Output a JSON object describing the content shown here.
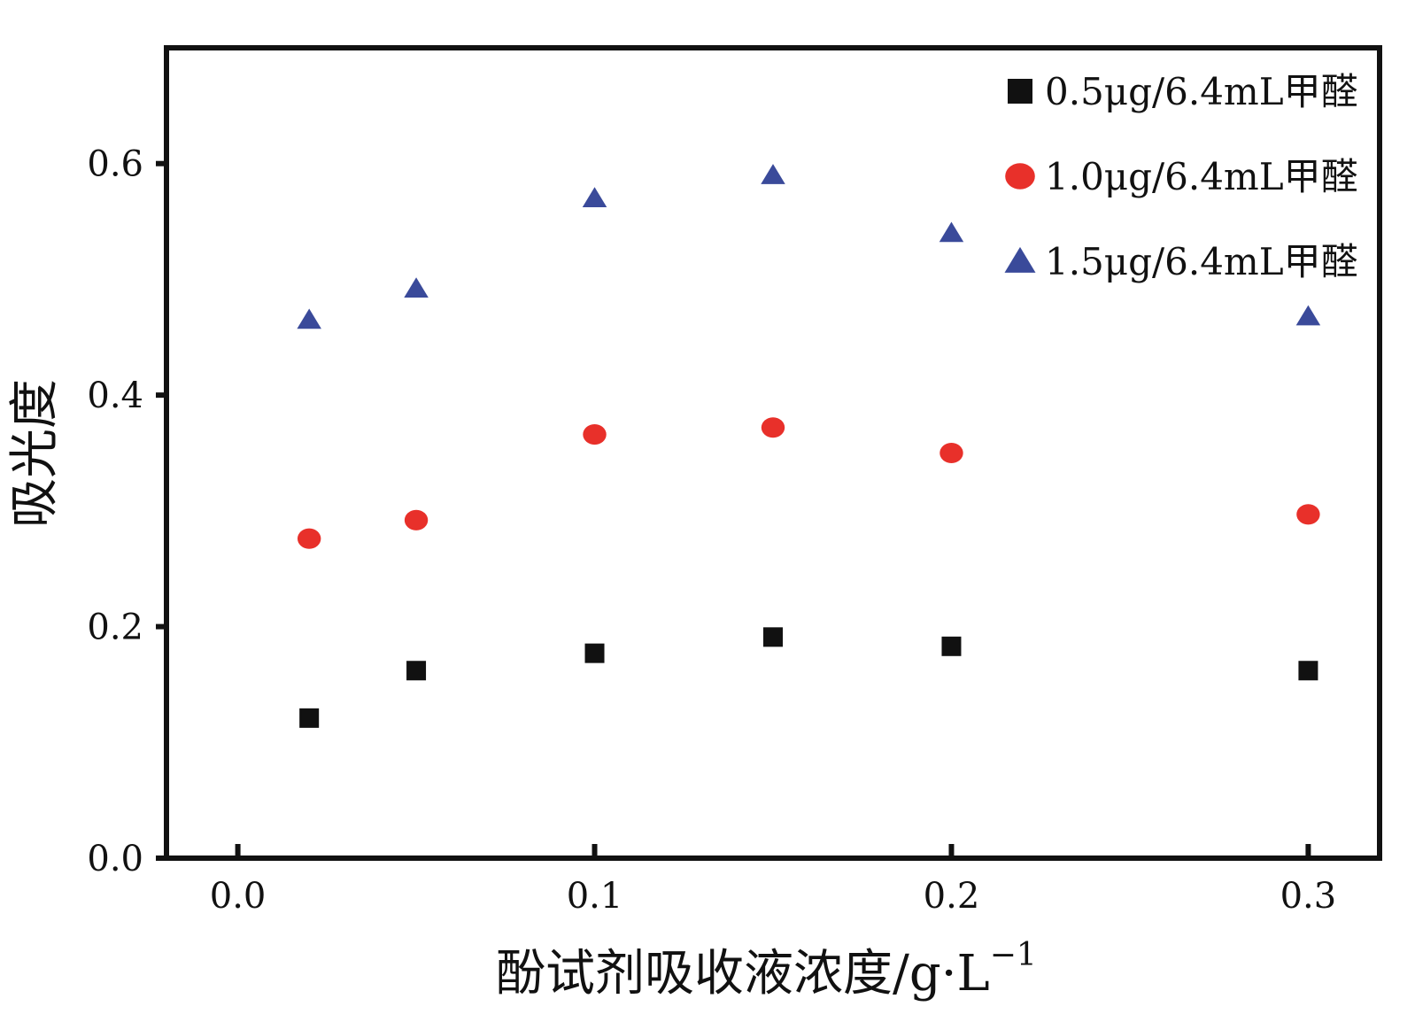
{
  "chart_data": {
    "type": "scatter",
    "title": "",
    "xlabel": "酚试剂吸收液浓度/g·L",
    "xlabel_superscript": "−1",
    "ylabel": "吸光度",
    "xlim": [
      -0.02,
      0.32
    ],
    "ylim": [
      0.0,
      0.7
    ],
    "x_ticks": [
      {
        "value": 0.0,
        "label": "0.0"
      },
      {
        "value": 0.1,
        "label": "0.1"
      },
      {
        "value": 0.2,
        "label": "0.2"
      },
      {
        "value": 0.3,
        "label": "0.3"
      }
    ],
    "y_ticks": [
      {
        "value": 0.0,
        "label": "0.0"
      },
      {
        "value": 0.2,
        "label": "0.2"
      },
      {
        "value": 0.4,
        "label": "0.4"
      },
      {
        "value": 0.6,
        "label": "0.6"
      }
    ],
    "grid": false,
    "legend_position": "top-right",
    "x": [
      0.02,
      0.05,
      0.1,
      0.15,
      0.2,
      0.3
    ],
    "series": [
      {
        "name": "0.5μg/6.4mL甲醛",
        "marker": "square",
        "color": "#111111",
        "values": [
          0.121,
          0.162,
          0.177,
          0.191,
          0.183,
          0.162
        ]
      },
      {
        "name": "1.0μg/6.4mL甲醛",
        "marker": "circle",
        "color": "#e8302a",
        "values": [
          0.276,
          0.292,
          0.366,
          0.372,
          0.35,
          0.297
        ]
      },
      {
        "name": "1.5μg/6.4mL甲醛",
        "marker": "triangle",
        "color": "#3a4a9a",
        "values": [
          0.465,
          0.492,
          0.57,
          0.59,
          0.54,
          0.468
        ]
      }
    ]
  }
}
